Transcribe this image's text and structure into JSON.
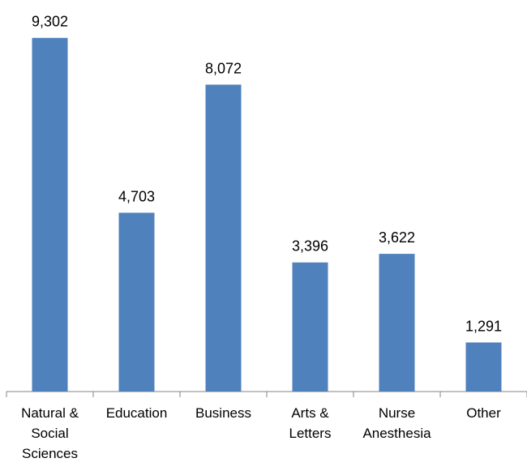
{
  "chart_data": {
    "type": "bar",
    "categories": [
      "Natural & Social Sciences",
      "Education",
      "Business",
      "Arts & Letters",
      "Nurse Anesthesia",
      "Other"
    ],
    "values": [
      9302,
      4703,
      8072,
      3396,
      3622,
      1291
    ],
    "value_labels": [
      "9,302",
      "4,703",
      "8,072",
      "3,396",
      "3,622",
      "1,291"
    ],
    "color": "#4f81bd",
    "ylim": [
      0,
      10000
    ]
  }
}
